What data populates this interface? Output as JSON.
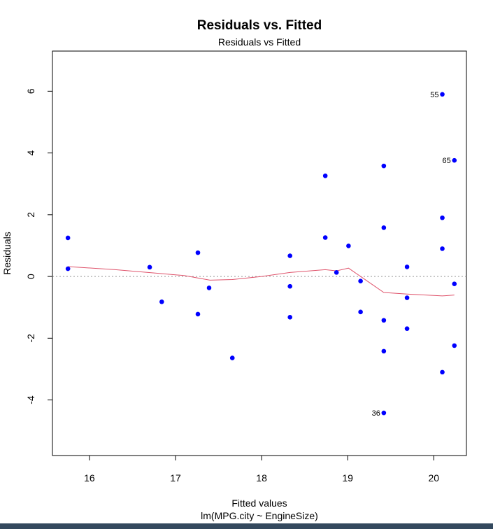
{
  "chart_data": {
    "type": "scatter",
    "title": "Residuals vs. Fitted",
    "subtitle": "Residuals vs Fitted",
    "xlabel": "Fitted values",
    "xlabel2": "lm(MPG.city ~ EngineSize)",
    "ylabel": "Residuals",
    "xlim": [
      15.57,
      20.38
    ],
    "ylim": [
      -5.8,
      7.3
    ],
    "xticks": [
      "16",
      "17",
      "18",
      "19",
      "20"
    ],
    "yticks": [
      "-4",
      "-2",
      "0",
      "2",
      "4",
      "6"
    ],
    "grid": false,
    "reference_line": 0,
    "point_color": "#0000ff",
    "smooth_color": "#df536b",
    "points": [
      {
        "x": 15.75,
        "y": 1.25
      },
      {
        "x": 15.75,
        "y": 0.25
      },
      {
        "x": 16.7,
        "y": 0.3
      },
      {
        "x": 16.84,
        "y": -0.82
      },
      {
        "x": 17.26,
        "y": 0.77
      },
      {
        "x": 17.26,
        "y": -1.22
      },
      {
        "x": 17.39,
        "y": -0.37
      },
      {
        "x": 17.66,
        "y": -2.64
      },
      {
        "x": 18.33,
        "y": 0.67
      },
      {
        "x": 18.33,
        "y": -0.32
      },
      {
        "x": 18.33,
        "y": -1.32
      },
      {
        "x": 18.74,
        "y": 3.26
      },
      {
        "x": 18.74,
        "y": 1.26
      },
      {
        "x": 18.87,
        "y": 0.13
      },
      {
        "x": 19.01,
        "y": 0.99
      },
      {
        "x": 19.15,
        "y": -0.15
      },
      {
        "x": 19.15,
        "y": -1.15
      },
      {
        "x": 19.42,
        "y": 3.58
      },
      {
        "x": 19.42,
        "y": 1.58
      },
      {
        "x": 19.42,
        "y": -1.42
      },
      {
        "x": 19.42,
        "y": -2.42
      },
      {
        "x": 19.42,
        "y": -4.42,
        "label": "36"
      },
      {
        "x": 19.69,
        "y": 0.31
      },
      {
        "x": 19.69,
        "y": -0.69
      },
      {
        "x": 19.69,
        "y": -1.69
      },
      {
        "x": 20.1,
        "y": 5.9,
        "label": "55"
      },
      {
        "x": 20.1,
        "y": 1.9
      },
      {
        "x": 20.1,
        "y": 0.9
      },
      {
        "x": 20.1,
        "y": -3.1
      },
      {
        "x": 20.24,
        "y": 3.76,
        "label": "65"
      },
      {
        "x": 20.24,
        "y": -0.24
      },
      {
        "x": 20.24,
        "y": -2.24
      }
    ],
    "smooth": [
      {
        "x": 15.75,
        "y": 0.32
      },
      {
        "x": 16.3,
        "y": 0.22
      },
      {
        "x": 16.8,
        "y": 0.1
      },
      {
        "x": 17.1,
        "y": 0.03
      },
      {
        "x": 17.4,
        "y": -0.12
      },
      {
        "x": 17.66,
        "y": -0.1
      },
      {
        "x": 18.0,
        "y": 0.0
      },
      {
        "x": 18.33,
        "y": 0.13
      },
      {
        "x": 18.74,
        "y": 0.22
      },
      {
        "x": 18.87,
        "y": 0.18
      },
      {
        "x": 19.01,
        "y": 0.27
      },
      {
        "x": 19.15,
        "y": 0.0
      },
      {
        "x": 19.42,
        "y": -0.52
      },
      {
        "x": 19.69,
        "y": -0.57
      },
      {
        "x": 20.1,
        "y": -0.63
      },
      {
        "x": 20.24,
        "y": -0.6
      }
    ]
  }
}
